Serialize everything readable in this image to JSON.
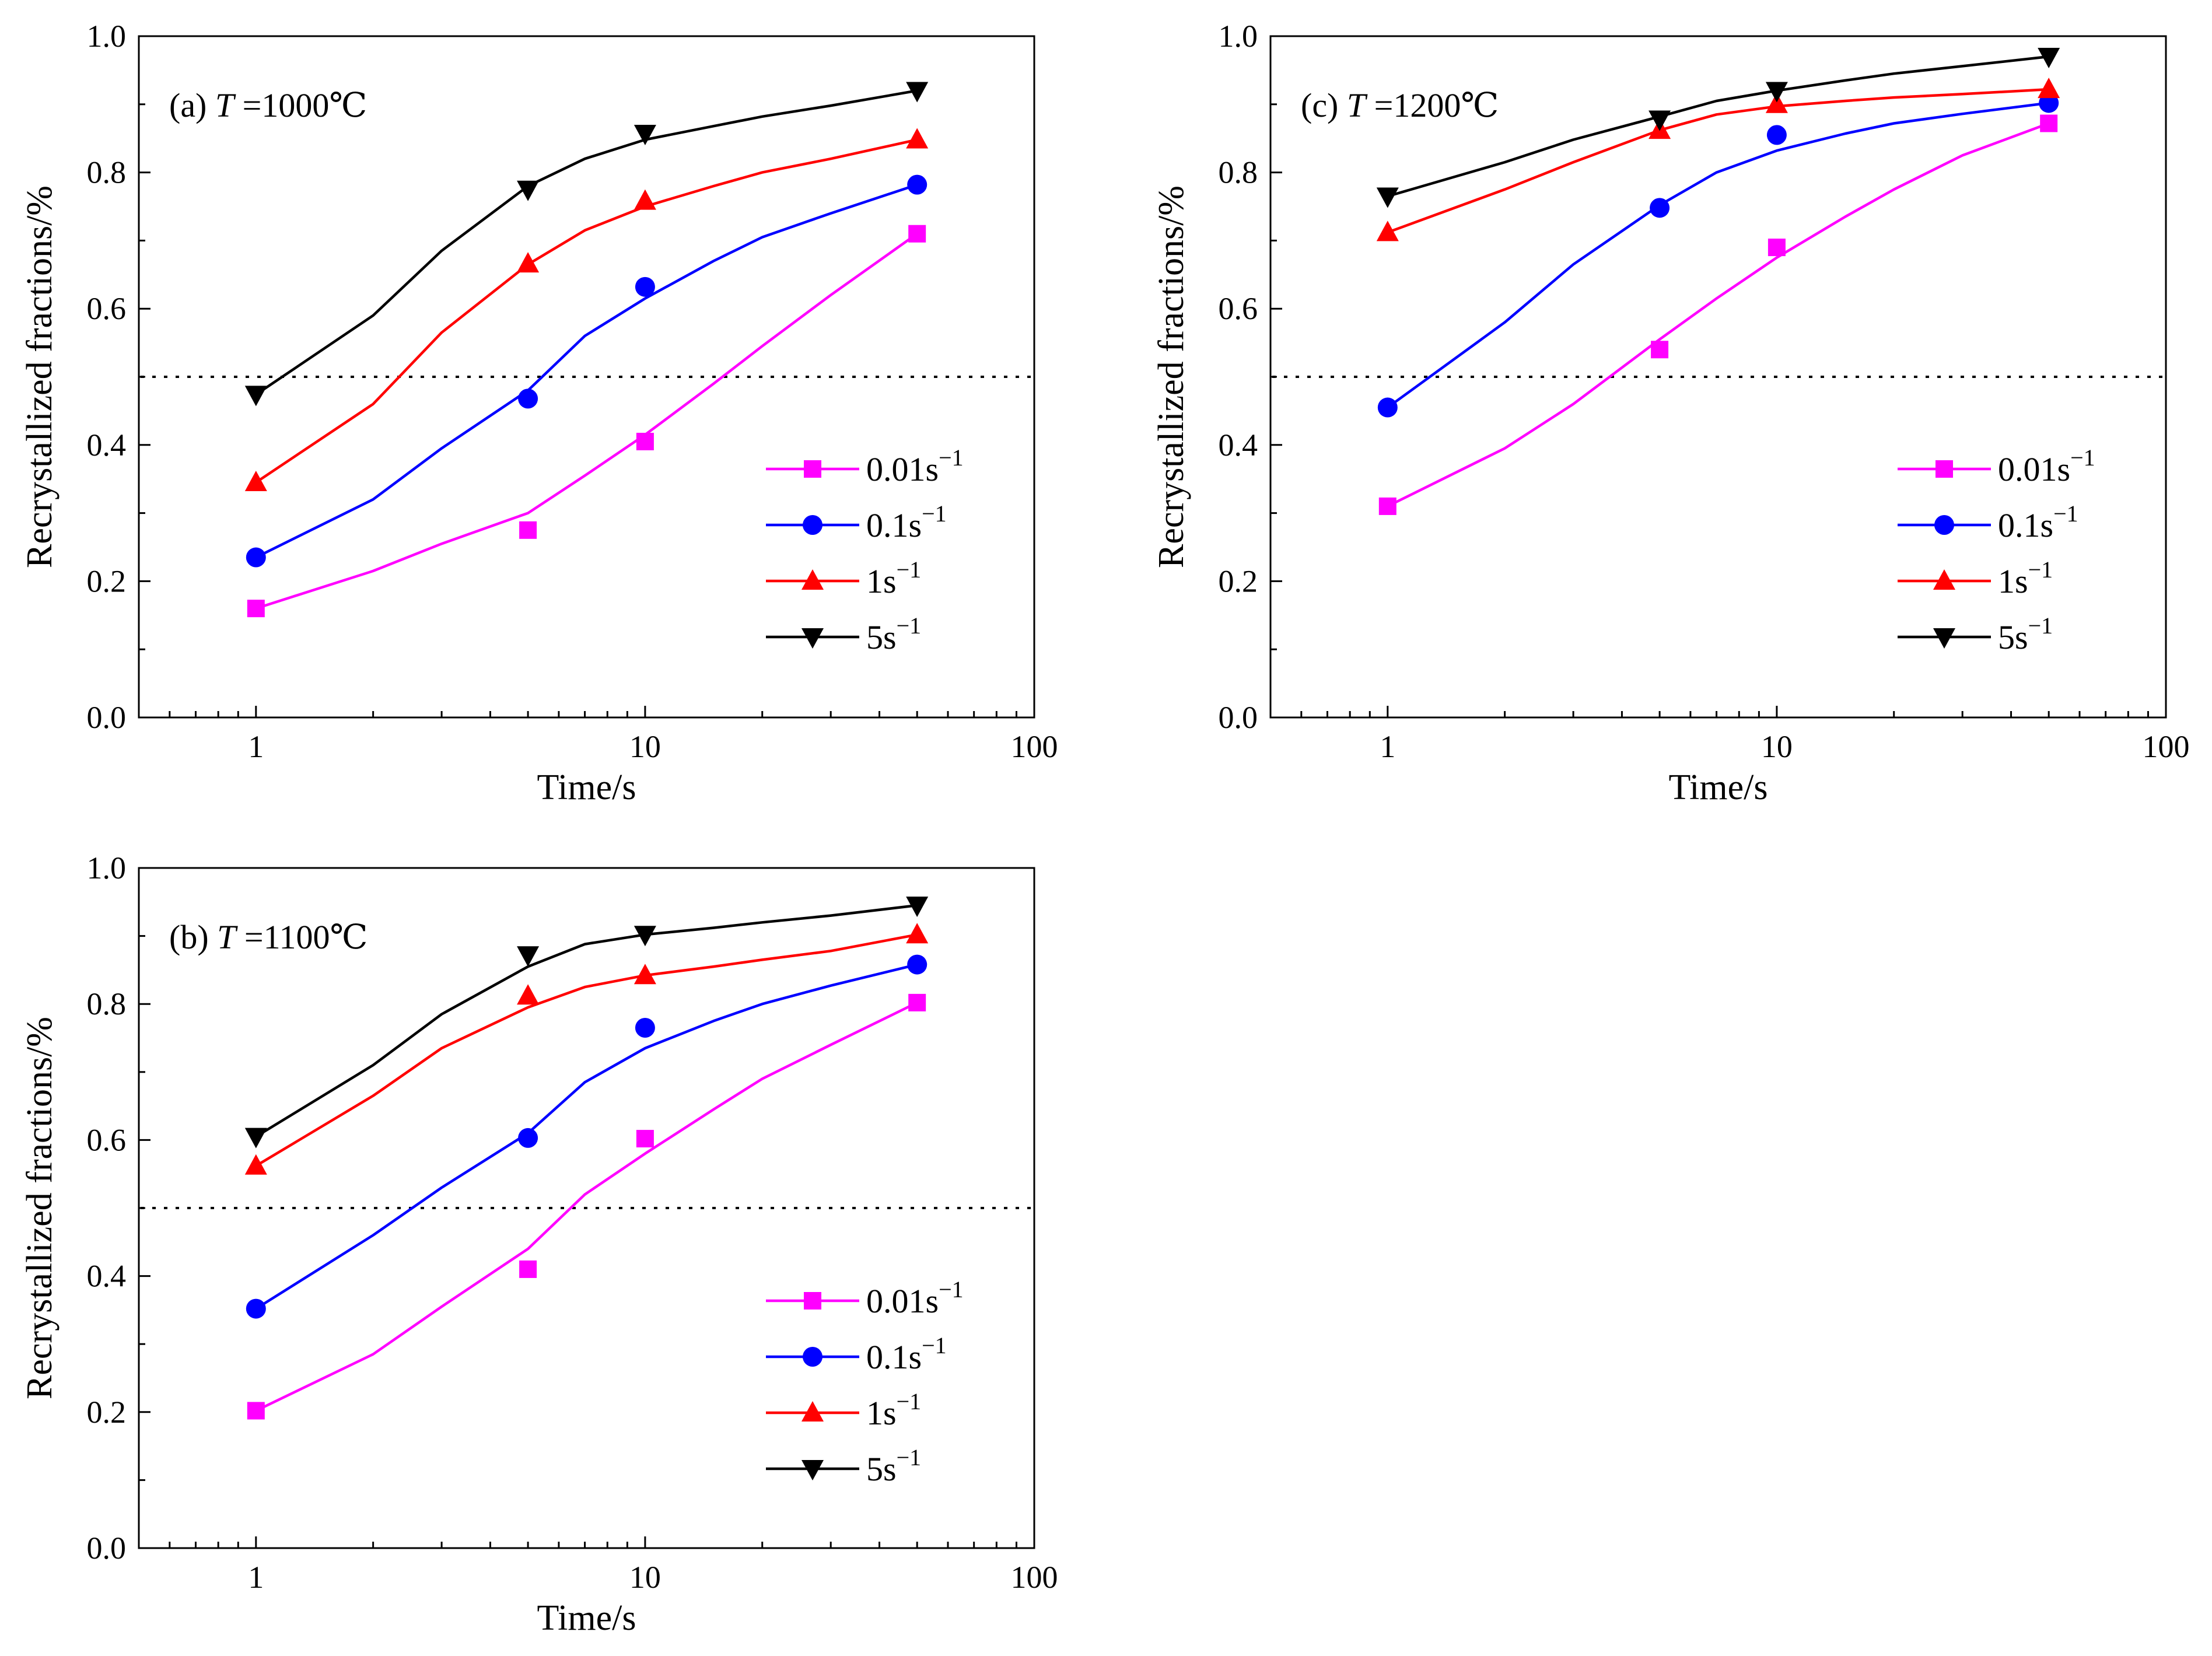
{
  "figure": {
    "panels_order": [
      "a",
      "c",
      "b"
    ]
  },
  "chart_data": [
    {
      "id": "a",
      "type": "line",
      "annotation": {
        "panel": "(a)",
        "var": "T",
        "value": "=1000℃"
      },
      "xlabel": "Time/s",
      "ylabel": "Recrystallized fractions/%",
      "xscale": "log",
      "xlim": [
        0.5,
        100
      ],
      "ylim": [
        0,
        1.0
      ],
      "xticks": [
        {
          "v": 1,
          "label": "1"
        },
        {
          "v": 10,
          "label": "10"
        },
        {
          "v": 100,
          "label": "100"
        }
      ],
      "yticks": [
        {
          "v": 0.0,
          "label": "0.0"
        },
        {
          "v": 0.2,
          "label": "0.2"
        },
        {
          "v": 0.4,
          "label": "0.4"
        },
        {
          "v": 0.6,
          "label": "0.6"
        },
        {
          "v": 0.8,
          "label": "0.8"
        },
        {
          "v": 1.0,
          "label": "1.0"
        }
      ],
      "reference_line": 0.5,
      "legend_position": "lower-right",
      "x": [
        1,
        5,
        10,
        50
      ],
      "series": [
        {
          "name": "0.01s",
          "sup": "−1",
          "color": "#ff00ff",
          "marker": "square",
          "values": [
            0.16,
            0.275,
            0.405,
            0.71
          ],
          "curve": [
            [
              1,
              0.16
            ],
            [
              2,
              0.215
            ],
            [
              3,
              0.255
            ],
            [
              5,
              0.3
            ],
            [
              7,
              0.355
            ],
            [
              10,
              0.415
            ],
            [
              15,
              0.49
            ],
            [
              20,
              0.545
            ],
            [
              30,
              0.62
            ],
            [
              50,
              0.71
            ]
          ]
        },
        {
          "name": "0.1s",
          "sup": "−1",
          "color": "#0000ff",
          "marker": "circle",
          "values": [
            0.235,
            0.468,
            0.632,
            0.782
          ],
          "curve": [
            [
              1,
              0.235
            ],
            [
              2,
              0.32
            ],
            [
              3,
              0.395
            ],
            [
              5,
              0.48
            ],
            [
              7,
              0.56
            ],
            [
              10,
              0.615
            ],
            [
              15,
              0.67
            ],
            [
              20,
              0.705
            ],
            [
              30,
              0.74
            ],
            [
              50,
              0.782
            ]
          ]
        },
        {
          "name": "1s",
          "sup": "−1",
          "color": "#ff0000",
          "marker": "triangle-up",
          "values": [
            0.345,
            0.666,
            0.758,
            0.848
          ],
          "curve": [
            [
              1,
              0.345
            ],
            [
              2,
              0.46
            ],
            [
              3,
              0.565
            ],
            [
              5,
              0.665
            ],
            [
              7,
              0.715
            ],
            [
              10,
              0.75
            ],
            [
              15,
              0.78
            ],
            [
              20,
              0.8
            ],
            [
              30,
              0.82
            ],
            [
              50,
              0.848
            ]
          ]
        },
        {
          "name": "5s",
          "sup": "−1",
          "color": "#000000",
          "marker": "triangle-down",
          "values": [
            0.474,
            0.775,
            0.857,
            0.92
          ],
          "curve": [
            [
              1,
              0.474
            ],
            [
              2,
              0.59
            ],
            [
              3,
              0.685
            ],
            [
              5,
              0.78
            ],
            [
              7,
              0.82
            ],
            [
              10,
              0.848
            ],
            [
              15,
              0.868
            ],
            [
              20,
              0.882
            ],
            [
              30,
              0.898
            ],
            [
              50,
              0.92
            ]
          ]
        }
      ]
    },
    {
      "id": "c",
      "type": "line",
      "annotation": {
        "panel": "(c)",
        "var": "T",
        "value": "=1200℃"
      },
      "xlabel": "Time/s",
      "ylabel": "Recrystallized fractions/%",
      "xscale": "log",
      "xlim": [
        0.5,
        100
      ],
      "ylim": [
        0,
        1.0
      ],
      "xticks": [
        {
          "v": 1,
          "label": "1"
        },
        {
          "v": 10,
          "label": "10"
        },
        {
          "v": 100,
          "label": "100"
        }
      ],
      "yticks": [
        {
          "v": 0.0,
          "label": "0.0"
        },
        {
          "v": 0.2,
          "label": "0.2"
        },
        {
          "v": 0.4,
          "label": "0.4"
        },
        {
          "v": 0.6,
          "label": "0.6"
        },
        {
          "v": 0.8,
          "label": "0.8"
        },
        {
          "v": 1.0,
          "label": "1.0"
        }
      ],
      "reference_line": 0.5,
      "legend_position": "lower-right",
      "x": [
        1,
        5,
        10,
        50
      ],
      "series": [
        {
          "name": "0.01s",
          "sup": "−1",
          "color": "#ff00ff",
          "marker": "square",
          "values": [
            0.31,
            0.54,
            0.69,
            0.872
          ],
          "curve": [
            [
              1,
              0.31
            ],
            [
              2,
              0.395
            ],
            [
              3,
              0.46
            ],
            [
              5,
              0.555
            ],
            [
              7,
              0.615
            ],
            [
              10,
              0.675
            ],
            [
              15,
              0.735
            ],
            [
              20,
              0.775
            ],
            [
              30,
              0.825
            ],
            [
              50,
              0.872
            ]
          ]
        },
        {
          "name": "0.1s",
          "sup": "−1",
          "color": "#0000ff",
          "marker": "circle",
          "values": [
            0.455,
            0.748,
            0.855,
            0.902
          ],
          "curve": [
            [
              1,
              0.455
            ],
            [
              2,
              0.58
            ],
            [
              3,
              0.665
            ],
            [
              5,
              0.752
            ],
            [
              7,
              0.8
            ],
            [
              10,
              0.832
            ],
            [
              15,
              0.857
            ],
            [
              20,
              0.872
            ],
            [
              30,
              0.886
            ],
            [
              50,
              0.902
            ]
          ]
        },
        {
          "name": "1s",
          "sup": "−1",
          "color": "#ff0000",
          "marker": "triangle-up",
          "values": [
            0.712,
            0.862,
            0.9,
            0.922
          ],
          "curve": [
            [
              1,
              0.712
            ],
            [
              2,
              0.775
            ],
            [
              3,
              0.815
            ],
            [
              5,
              0.862
            ],
            [
              7,
              0.885
            ],
            [
              10,
              0.897
            ],
            [
              15,
              0.905
            ],
            [
              20,
              0.91
            ],
            [
              30,
              0.915
            ],
            [
              50,
              0.922
            ]
          ]
        },
        {
          "name": "5s",
          "sup": "−1",
          "color": "#000000",
          "marker": "triangle-down",
          "values": [
            0.765,
            0.878,
            0.92,
            0.97
          ],
          "curve": [
            [
              1,
              0.765
            ],
            [
              2,
              0.815
            ],
            [
              3,
              0.848
            ],
            [
              5,
              0.882
            ],
            [
              7,
              0.905
            ],
            [
              10,
              0.92
            ],
            [
              15,
              0.935
            ],
            [
              20,
              0.945
            ],
            [
              30,
              0.956
            ],
            [
              50,
              0.97
            ]
          ]
        }
      ]
    },
    {
      "id": "b",
      "type": "line",
      "annotation": {
        "panel": "(b)",
        "var": "T",
        "value": "=1100℃"
      },
      "xlabel": "Time/s",
      "ylabel": "Recrystallized fractions/%",
      "xscale": "log",
      "xlim": [
        0.5,
        100
      ],
      "ylim": [
        0,
        1.0
      ],
      "xticks": [
        {
          "v": 1,
          "label": "1"
        },
        {
          "v": 10,
          "label": "10"
        },
        {
          "v": 100,
          "label": "100"
        }
      ],
      "yticks": [
        {
          "v": 0.0,
          "label": "0.0"
        },
        {
          "v": 0.2,
          "label": "0.2"
        },
        {
          "v": 0.4,
          "label": "0.4"
        },
        {
          "v": 0.6,
          "label": "0.6"
        },
        {
          "v": 0.8,
          "label": "0.8"
        },
        {
          "v": 1.0,
          "label": "1.0"
        }
      ],
      "reference_line": 0.5,
      "legend_position": "lower-right",
      "x": [
        1,
        5,
        10,
        50
      ],
      "series": [
        {
          "name": "0.01s",
          "sup": "−1",
          "color": "#ff00ff",
          "marker": "square",
          "values": [
            0.202,
            0.41,
            0.602,
            0.802
          ],
          "curve": [
            [
              1,
              0.202
            ],
            [
              2,
              0.285
            ],
            [
              3,
              0.355
            ],
            [
              5,
              0.44
            ],
            [
              7,
              0.52
            ],
            [
              10,
              0.58
            ],
            [
              15,
              0.645
            ],
            [
              20,
              0.69
            ],
            [
              30,
              0.74
            ],
            [
              50,
              0.802
            ]
          ]
        },
        {
          "name": "0.1s",
          "sup": "−1",
          "color": "#0000ff",
          "marker": "circle",
          "values": [
            0.352,
            0.603,
            0.765,
            0.858
          ],
          "curve": [
            [
              1,
              0.352
            ],
            [
              2,
              0.46
            ],
            [
              3,
              0.53
            ],
            [
              5,
              0.61
            ],
            [
              7,
              0.685
            ],
            [
              10,
              0.735
            ],
            [
              15,
              0.775
            ],
            [
              20,
              0.8
            ],
            [
              30,
              0.827
            ],
            [
              50,
              0.858
            ]
          ]
        },
        {
          "name": "1s",
          "sup": "−1",
          "color": "#ff0000",
          "marker": "triangle-up",
          "values": [
            0.562,
            0.812,
            0.842,
            0.902
          ],
          "curve": [
            [
              1,
              0.562
            ],
            [
              2,
              0.665
            ],
            [
              3,
              0.735
            ],
            [
              5,
              0.795
            ],
            [
              7,
              0.825
            ],
            [
              10,
              0.842
            ],
            [
              15,
              0.855
            ],
            [
              20,
              0.865
            ],
            [
              30,
              0.878
            ],
            [
              50,
              0.902
            ]
          ]
        },
        {
          "name": "5s",
          "sup": "−1",
          "color": "#000000",
          "marker": "triangle-down",
          "values": [
            0.605,
            0.872,
            0.902,
            0.945
          ],
          "curve": [
            [
              1,
              0.605
            ],
            [
              2,
              0.71
            ],
            [
              3,
              0.785
            ],
            [
              5,
              0.855
            ],
            [
              7,
              0.888
            ],
            [
              10,
              0.902
            ],
            [
              15,
              0.912
            ],
            [
              20,
              0.92
            ],
            [
              30,
              0.93
            ],
            [
              50,
              0.945
            ]
          ]
        }
      ]
    }
  ]
}
